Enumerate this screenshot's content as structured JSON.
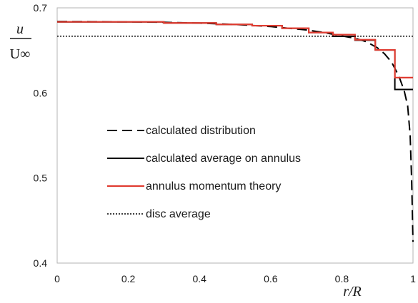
{
  "chart_data": {
    "type": "line",
    "xlabel": "r/R",
    "ylabel": {
      "numerator": "u",
      "denominator": "U∞"
    },
    "xlim": [
      0,
      1
    ],
    "ylim": [
      0.4,
      0.7
    ],
    "x_ticks": [
      "0",
      "0.2",
      "0.4",
      "0.6",
      "0.8",
      "1"
    ],
    "y_ticks": [
      "0.4",
      "0.5",
      "0.6",
      "0.7"
    ],
    "grid": false,
    "legend_position": "left-center",
    "series": [
      {
        "name": "calculated distribution",
        "style": "dashed",
        "color": "#000000",
        "x": [
          0,
          0.1,
          0.2,
          0.3,
          0.4,
          0.5,
          0.6,
          0.7,
          0.75,
          0.8,
          0.84,
          0.87,
          0.9,
          0.92,
          0.94,
          0.96,
          0.975,
          0.985,
          0.992,
          0.996,
          1.0
        ],
        "y": [
          0.684,
          0.6838,
          0.6835,
          0.683,
          0.682,
          0.6805,
          0.678,
          0.674,
          0.671,
          0.667,
          0.664,
          0.66,
          0.653,
          0.646,
          0.636,
          0.62,
          0.603,
          0.585,
          0.55,
          0.5,
          0.425
        ]
      },
      {
        "name": "calculated average on annulus",
        "style": "solid",
        "color": "#000000",
        "x": [
          0,
          0.3,
          0.3,
          0.447,
          0.447,
          0.548,
          0.548,
          0.632,
          0.632,
          0.707,
          0.707,
          0.775,
          0.775,
          0.837,
          0.837,
          0.894,
          0.894,
          0.949,
          0.949,
          1.0
        ],
        "y": [
          0.6835,
          0.6835,
          0.6822,
          0.6822,
          0.6805,
          0.6805,
          0.679,
          0.679,
          0.676,
          0.676,
          0.671,
          0.671,
          0.6665,
          0.6665,
          0.662,
          0.662,
          0.6505,
          0.6505,
          0.604,
          0.604
        ]
      },
      {
        "name": "annulus momentum theory",
        "style": "solid",
        "color": "#e03c31",
        "x": [
          0,
          0.3,
          0.3,
          0.447,
          0.447,
          0.548,
          0.548,
          0.632,
          0.632,
          0.707,
          0.707,
          0.775,
          0.775,
          0.837,
          0.837,
          0.894,
          0.894,
          0.949,
          0.949,
          1.0
        ],
        "y": [
          0.6835,
          0.6835,
          0.6822,
          0.6822,
          0.6805,
          0.6805,
          0.679,
          0.679,
          0.676,
          0.676,
          0.671,
          0.671,
          0.6685,
          0.6685,
          0.6625,
          0.6625,
          0.6505,
          0.6505,
          0.618,
          0.618
        ]
      },
      {
        "name": "disc average",
        "style": "dotted",
        "color": "#000000",
        "x": [
          0,
          1
        ],
        "y": [
          0.6667,
          0.6667
        ]
      }
    ]
  }
}
